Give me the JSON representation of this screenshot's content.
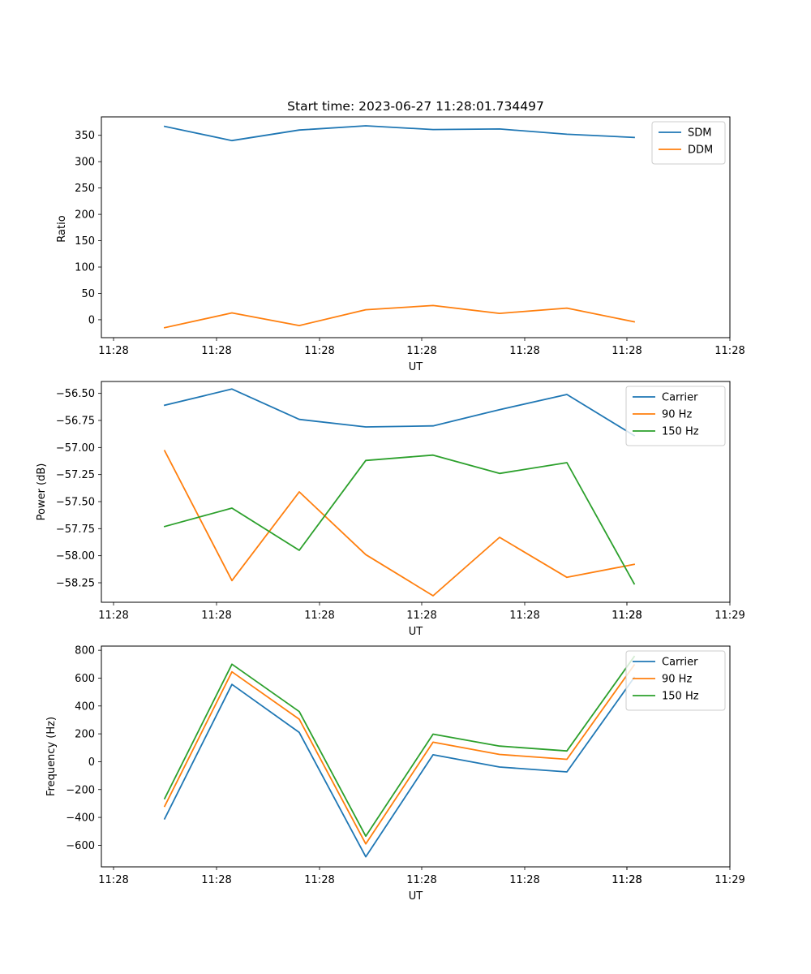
{
  "figure_title": "Start time: 2023-06-27 11:28:01.734497",
  "chart_data": [
    {
      "type": "line",
      "title": "Start time: 2023-06-27 11:28:01.734497",
      "xlabel": "UT",
      "ylabel": "Ratio",
      "x_tick_labels": [
        "11:28",
        "11:28",
        "11:28",
        "11:28",
        "11:28",
        "11:28",
        "11:28"
      ],
      "y_ticks": [
        "0",
        "50",
        "100",
        "150",
        "200",
        "250",
        "300",
        "350"
      ],
      "ylim": [
        -34,
        385
      ],
      "grid": false,
      "legend": "top-right",
      "series": [
        {
          "name": "SDM",
          "color": "#1f77b4",
          "values": [
            367,
            340,
            360,
            368,
            361,
            362,
            352,
            346
          ]
        },
        {
          "name": "DDM",
          "color": "#ff7f0e",
          "values": [
            -15,
            13,
            -11,
            19,
            27,
            12,
            22,
            -4
          ]
        }
      ]
    },
    {
      "type": "line",
      "title": "",
      "xlabel": "UT",
      "ylabel": "Power (dB)",
      "x_tick_labels": [
        "11:28",
        "11:28",
        "11:28",
        "11:28",
        "11:28",
        "11:28",
        "11:28",
        "11:29"
      ],
      "y_ticks": [
        "−58.25",
        "−58.00",
        "−57.75",
        "−57.50",
        "−57.25",
        "−57.00",
        "−56.75",
        "−56.50"
      ],
      "ylim": [
        -58.43,
        -56.39
      ],
      "grid": false,
      "legend": "top-right",
      "series": [
        {
          "name": "Carrier",
          "color": "#1f77b4",
          "values": [
            -56.61,
            -56.46,
            -56.74,
            -56.81,
            -56.8,
            -56.65,
            -56.51,
            -56.89
          ]
        },
        {
          "name": "90 Hz",
          "color": "#ff7f0e",
          "values": [
            -57.03,
            -58.23,
            -57.41,
            -57.99,
            -58.37,
            -57.83,
            -58.2,
            -58.08
          ]
        },
        {
          "name": "150 Hz",
          "color": "#2ca02c",
          "values": [
            -57.73,
            -57.56,
            -57.95,
            -57.12,
            -57.07,
            -57.24,
            -57.14,
            -58.26
          ]
        }
      ]
    },
    {
      "type": "line",
      "title": "",
      "xlabel": "UT",
      "ylabel": "Frequency (Hz)",
      "x_tick_labels": [
        "11:28",
        "11:28",
        "11:28",
        "11:28",
        "11:28",
        "11:28",
        "11:28",
        "11:29"
      ],
      "y_ticks": [
        "−600",
        "−400",
        "−200",
        "0",
        "200",
        "400",
        "600",
        "800"
      ],
      "ylim": [
        -755,
        830
      ],
      "grid": false,
      "legend": "top-right",
      "series": [
        {
          "name": "Carrier",
          "color": "#1f77b4",
          "values": [
            -410,
            555,
            210,
            -683,
            50,
            -38,
            -73,
            605
          ]
        },
        {
          "name": "90 Hz",
          "color": "#ff7f0e",
          "values": [
            -320,
            645,
            305,
            -590,
            140,
            52,
            17,
            695
          ]
        },
        {
          "name": "150 Hz",
          "color": "#2ca02c",
          "values": [
            -265,
            700,
            360,
            -535,
            198,
            112,
            77,
            755
          ]
        }
      ]
    }
  ]
}
